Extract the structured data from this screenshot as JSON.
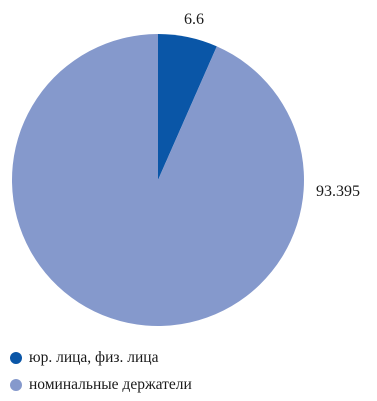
{
  "chart_data": {
    "type": "pie",
    "title": "",
    "start_angle_deg": 0,
    "direction": "clockwise",
    "slices": [
      {
        "label": "юр. лица, физ. лица",
        "value": 6.6,
        "value_label": "6.6",
        "color": "#0a56a7"
      },
      {
        "label": "номинальные держатели",
        "value": 93.395,
        "value_label": "93.395",
        "color": "#8599cc"
      }
    ],
    "legend": {
      "position": "bottom-left",
      "entries": [
        "юр. лица, физ. лица",
        "номинальные держатели"
      ]
    }
  }
}
